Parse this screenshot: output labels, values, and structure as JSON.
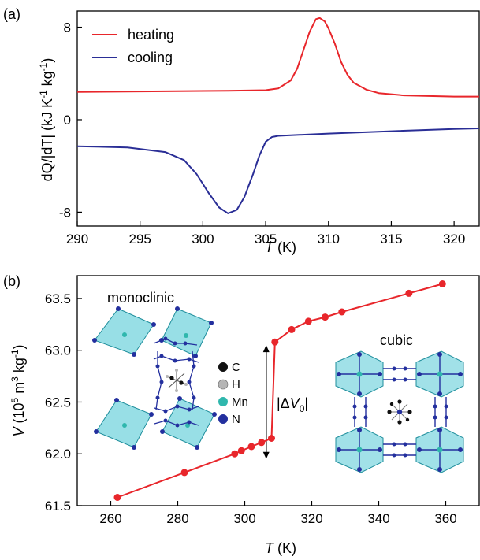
{
  "colors": {
    "heating": "#e8262b",
    "cooling": "#2a2e96",
    "volume": "#e8262b",
    "octahedron": "#43c4d2",
    "octahedron_edge": "#1f8e9c",
    "atom_C": "#111111",
    "atom_H": "#b5b5b5",
    "atom_Mn": "#2fb7ad",
    "atom_N": "#232f9e"
  },
  "chart_data": [
    {
      "type": "line",
      "panel_label": "(a)",
      "xlabel": {
        "italic": "T",
        "unit": " (K)"
      },
      "ylabel": "dQ/|dT| (kJ K⁻¹ kg⁻¹)",
      "xlim": [
        290,
        322
      ],
      "ylim": [
        -9.2,
        9.4
      ],
      "xticks": [
        290,
        295,
        300,
        305,
        310,
        315,
        320
      ],
      "yticks": [
        8,
        0,
        -8
      ],
      "ytick_labels": [
        "8",
        "0",
        "-8"
      ],
      "legend": {
        "placement": "top-left"
      },
      "series": [
        {
          "name": "heating",
          "x": [
            290,
            296,
            302,
            305,
            306,
            307,
            307.5,
            308,
            308.5,
            309,
            309.3,
            309.7,
            310,
            310.5,
            311,
            311.5,
            312,
            313,
            314,
            316,
            318,
            320,
            322
          ],
          "y": [
            2.4,
            2.45,
            2.5,
            2.55,
            2.7,
            3.4,
            4.4,
            6.0,
            7.6,
            8.7,
            8.8,
            8.5,
            7.9,
            6.6,
            5.0,
            3.9,
            3.2,
            2.6,
            2.3,
            2.1,
            2.05,
            2.0,
            2.0
          ]
        },
        {
          "name": "cooling",
          "x": [
            290,
            294,
            297,
            298.5,
            299.5,
            300.5,
            301.3,
            302,
            302.7,
            303.3,
            304,
            304.5,
            305,
            305.5,
            306,
            310,
            315,
            320,
            322
          ],
          "y": [
            -2.3,
            -2.4,
            -2.8,
            -3.5,
            -4.7,
            -6.4,
            -7.6,
            -8.1,
            -7.8,
            -6.7,
            -4.7,
            -3.1,
            -1.9,
            -1.5,
            -1.4,
            -1.2,
            -1.0,
            -0.8,
            -0.75
          ]
        }
      ]
    },
    {
      "type": "scatter",
      "panel_label": "(b)",
      "xlabel": {
        "italic": "T",
        "unit": " (K)"
      },
      "ylabel": "V (10⁵ m³ kg⁻¹)",
      "xlim": [
        250,
        370
      ],
      "ylim": [
        61.5,
        63.72
      ],
      "xticks": [
        260,
        280,
        300,
        320,
        340,
        360
      ],
      "yticks": [
        61.5,
        62.0,
        62.5,
        63.0,
        63.5
      ],
      "ytick_labels": [
        "61.5",
        "62.0",
        "62.5",
        "63.0",
        "63.5"
      ],
      "series": [
        {
          "name": "",
          "x": [
            262,
            282,
            297,
            299,
            302,
            305,
            308,
            309,
            314,
            319,
            324,
            329,
            349,
            359
          ],
          "y": [
            61.58,
            61.82,
            62.0,
            62.03,
            62.07,
            62.11,
            62.15,
            63.08,
            63.2,
            63.28,
            63.32,
            63.37,
            63.55,
            63.64
          ]
        }
      ],
      "annotation": {
        "text_prefix": "|Δ",
        "text_var": "V",
        "text_sub": "0",
        "text_suffix": "|",
        "x": 309,
        "y_from": 61.95,
        "y_to": 63.05
      },
      "insets": {
        "monoclinic_label": "monoclinic",
        "cubic_label": "cubic",
        "atom_legend": [
          "C",
          "H",
          "Mn",
          "N"
        ]
      }
    }
  ]
}
